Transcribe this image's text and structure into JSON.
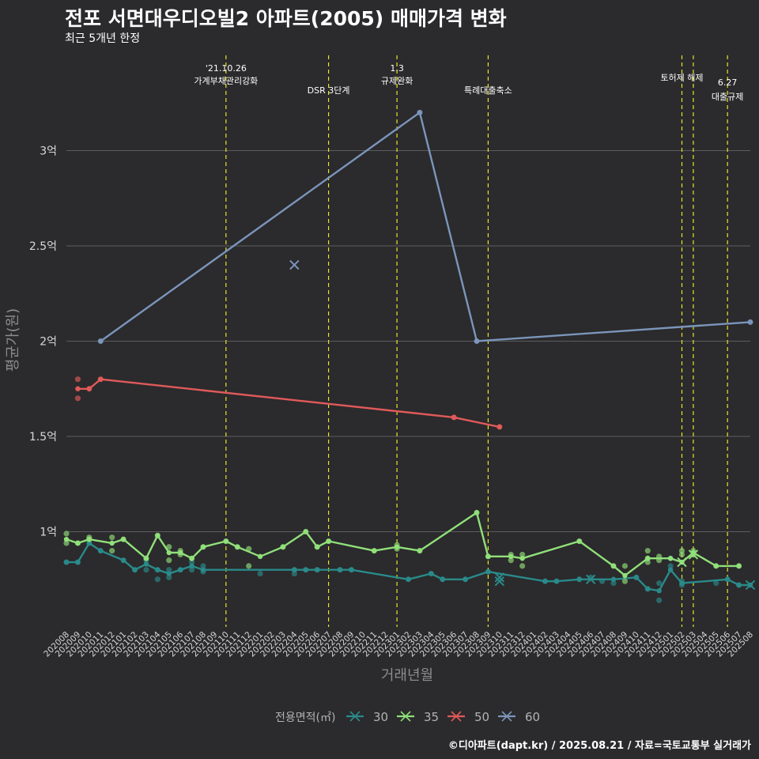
{
  "header": {
    "title": "전포 서면대우디오빌2 아파트(2005) 매매가격 변화",
    "subtitle": "최근 5개년 한정"
  },
  "footer": {
    "credit": "©디아파트(dapt.kr) / 2025.08.21 / 자료=국토교통부 실거래가"
  },
  "colors": {
    "background": "#2b2a2c",
    "grid": "#5d5d5f",
    "event_line": "#e6e62a",
    "axis_text": "#d9d9d9",
    "axis_title": "#8c8c8c"
  },
  "chart_data": {
    "type": "line",
    "xlabel": "거래년월",
    "ylabel": "평균가(원)",
    "ylim": [
      0.5,
      3.5
    ],
    "grid": true,
    "legend_position": "bottom",
    "legend_title": "전용면적(㎡)",
    "x_categories": [
      "202008",
      "202009",
      "202010",
      "202011",
      "202012",
      "202101",
      "202102",
      "202103",
      "202104",
      "202105",
      "202106",
      "202107",
      "202108",
      "202109",
      "202110",
      "202111",
      "202112",
      "202201",
      "202202",
      "202203",
      "202204",
      "202205",
      "202206",
      "202207",
      "202208",
      "202209",
      "202210",
      "202211",
      "202212",
      "202301",
      "202302",
      "202303",
      "202304",
      "202305",
      "202306",
      "202307",
      "202308",
      "202309",
      "202310",
      "202311",
      "202312",
      "202401",
      "202402",
      "202403",
      "202404",
      "202405",
      "202406",
      "202407",
      "202408",
      "202409",
      "202410",
      "202411",
      "202412",
      "202501",
      "202502",
      "202503",
      "202504",
      "202505",
      "202506",
      "202507",
      "202508"
    ],
    "y_ticks": [
      {
        "value": 1.0,
        "label": "1억"
      },
      {
        "value": 1.5,
        "label": "1.5억"
      },
      {
        "value": 2.0,
        "label": "2억"
      },
      {
        "value": 2.5,
        "label": "2.5억"
      },
      {
        "value": 3.0,
        "label": "3억"
      }
    ],
    "events": [
      {
        "x": "202110",
        "lines": [
          "'21.10.26",
          "가계부채관리강화"
        ]
      },
      {
        "x": "202207",
        "lines": [
          "DSR 3단계"
        ]
      },
      {
        "x": "202301",
        "lines": [
          "1.3",
          "규제완화"
        ]
      },
      {
        "x": "202309",
        "lines": [
          "특례대출축소"
        ]
      },
      {
        "x": "202502",
        "lines": [
          "토허제 해제"
        ]
      },
      {
        "x": "202503",
        "lines": []
      },
      {
        "x": "202506",
        "lines": [
          "6.27",
          "대출규제"
        ]
      }
    ],
    "series": [
      {
        "name": "30",
        "color": "#2a8a8a",
        "line": [
          [
            "202008",
            0.84
          ],
          [
            "202009",
            0.84
          ],
          [
            "202010",
            0.94
          ],
          [
            "202011",
            0.9
          ],
          [
            "202101",
            0.85
          ],
          [
            "202102",
            0.8
          ],
          [
            "202103",
            0.83
          ],
          [
            "202104",
            0.8
          ],
          [
            "202105",
            0.78
          ],
          [
            "202106",
            0.8
          ],
          [
            "202107",
            0.82
          ],
          [
            "202108",
            0.8
          ],
          [
            "202204",
            0.8
          ],
          [
            "202205",
            0.8
          ],
          [
            "202206",
            0.8
          ],
          [
            "202208",
            0.8
          ],
          [
            "202209",
            0.8
          ],
          [
            "202302",
            0.75
          ],
          [
            "202304",
            0.78
          ],
          [
            "202305",
            0.75
          ],
          [
            "202307",
            0.75
          ],
          [
            "202309",
            0.79
          ],
          [
            "202402",
            0.74
          ],
          [
            "202403",
            0.74
          ],
          [
            "202405",
            0.75
          ],
          [
            "202408",
            0.75
          ],
          [
            "202410",
            0.76
          ],
          [
            "202411",
            0.7
          ],
          [
            "202412",
            0.69
          ],
          [
            "202501",
            0.8
          ],
          [
            "202502",
            0.73
          ],
          [
            "202506",
            0.75
          ],
          [
            "202507",
            0.72
          ],
          [
            "202508",
            0.72
          ]
        ],
        "points": [
          [
            "202008",
            0.84
          ],
          [
            "202009",
            0.84
          ],
          [
            "202010",
            0.94
          ],
          [
            "202011",
            0.9
          ],
          [
            "202101",
            0.85
          ],
          [
            "202102",
            0.8
          ],
          [
            "202103",
            0.8
          ],
          [
            "202103",
            0.85
          ],
          [
            "202104",
            0.75
          ],
          [
            "202104",
            0.8
          ],
          [
            "202105",
            0.76
          ],
          [
            "202105",
            0.8
          ],
          [
            "202106",
            0.8
          ],
          [
            "202107",
            0.8
          ],
          [
            "202107",
            0.84
          ],
          [
            "202108",
            0.79
          ],
          [
            "202108",
            0.82
          ],
          [
            "202201",
            0.78
          ],
          [
            "202204",
            0.78
          ],
          [
            "202204",
            0.8
          ],
          [
            "202205",
            0.8
          ],
          [
            "202206",
            0.8
          ],
          [
            "202208",
            0.8
          ],
          [
            "202209",
            0.8
          ],
          [
            "202302",
            0.75
          ],
          [
            "202304",
            0.78
          ],
          [
            "202305",
            0.75
          ],
          [
            "202307",
            0.75
          ],
          [
            "202309",
            0.79
          ],
          [
            "202402",
            0.74
          ],
          [
            "202403",
            0.74
          ],
          [
            "202405",
            0.75
          ],
          [
            "202406",
            0.76
          ],
          [
            "202407",
            0.74
          ],
          [
            "202408",
            0.73
          ],
          [
            "202410",
            0.76
          ],
          [
            "202411",
            0.7
          ],
          [
            "202412",
            0.64
          ],
          [
            "202412",
            0.73
          ],
          [
            "202501",
            0.82
          ],
          [
            "202501",
            0.86
          ],
          [
            "202502",
            0.72
          ],
          [
            "202502",
            0.74
          ],
          [
            "202505",
            0.73
          ],
          [
            "202506",
            0.75
          ],
          [
            "202507",
            0.72
          ]
        ],
        "x_marks": [
          [
            "202310",
            0.74
          ],
          [
            "202310",
            0.76
          ],
          [
            "202406",
            0.75
          ],
          [
            "202508",
            0.72
          ]
        ]
      },
      {
        "name": "35",
        "color": "#90e07a",
        "line": [
          [
            "202008",
            0.96
          ],
          [
            "202009",
            0.94
          ],
          [
            "202010",
            0.96
          ],
          [
            "202012",
            0.94
          ],
          [
            "202101",
            0.96
          ],
          [
            "202103",
            0.86
          ],
          [
            "202104",
            0.98
          ],
          [
            "202105",
            0.89
          ],
          [
            "202106",
            0.89
          ],
          [
            "202107",
            0.86
          ],
          [
            "202108",
            0.92
          ],
          [
            "202110",
            0.95
          ],
          [
            "202111",
            0.92
          ],
          [
            "202201",
            0.87
          ],
          [
            "202203",
            0.92
          ],
          [
            "202205",
            1.0
          ],
          [
            "202206",
            0.92
          ],
          [
            "202207",
            0.95
          ],
          [
            "202211",
            0.9
          ],
          [
            "202301",
            0.92
          ],
          [
            "202303",
            0.9
          ],
          [
            "202308",
            1.1
          ],
          [
            "202309",
            0.87
          ],
          [
            "202311",
            0.87
          ],
          [
            "202312",
            0.86
          ],
          [
            "202405",
            0.95
          ],
          [
            "202408",
            0.82
          ],
          [
            "202409",
            0.77
          ],
          [
            "202411",
            0.86
          ],
          [
            "202501",
            0.86
          ],
          [
            "202502",
            0.84
          ],
          [
            "202503",
            0.89
          ],
          [
            "202505",
            0.82
          ],
          [
            "202507",
            0.82
          ]
        ],
        "points": [
          [
            "202008",
            0.99
          ],
          [
            "202008",
            0.94
          ],
          [
            "202009",
            0.94
          ],
          [
            "202010",
            0.96
          ],
          [
            "202010",
            0.97
          ],
          [
            "202012",
            0.9
          ],
          [
            "202012",
            0.97
          ],
          [
            "202101",
            0.96
          ],
          [
            "202103",
            0.86
          ],
          [
            "202104",
            0.98
          ],
          [
            "202105",
            0.85
          ],
          [
            "202105",
            0.92
          ],
          [
            "202106",
            0.88
          ],
          [
            "202106",
            0.9
          ],
          [
            "202107",
            0.86
          ],
          [
            "202108",
            0.92
          ],
          [
            "202110",
            0.95
          ],
          [
            "202111",
            0.92
          ],
          [
            "202112",
            0.82
          ],
          [
            "202112",
            0.91
          ],
          [
            "202203",
            0.92
          ],
          [
            "202205",
            1.0
          ],
          [
            "202206",
            0.92
          ],
          [
            "202207",
            0.95
          ],
          [
            "202211",
            0.9
          ],
          [
            "202301",
            0.91
          ],
          [
            "202301",
            0.93
          ],
          [
            "202303",
            0.9
          ],
          [
            "202308",
            1.1
          ],
          [
            "202309",
            0.87
          ],
          [
            "202311",
            0.85
          ],
          [
            "202311",
            0.88
          ],
          [
            "202312",
            0.82
          ],
          [
            "202312",
            0.88
          ],
          [
            "202405",
            0.95
          ],
          [
            "202408",
            0.82
          ],
          [
            "202409",
            0.74
          ],
          [
            "202409",
            0.82
          ],
          [
            "202411",
            0.84
          ],
          [
            "202411",
            0.86
          ],
          [
            "202411",
            0.9
          ],
          [
            "202412",
            0.85
          ],
          [
            "202412",
            0.87
          ],
          [
            "202502",
            0.88
          ],
          [
            "202502",
            0.9
          ],
          [
            "202503",
            0.88
          ],
          [
            "202503",
            0.9
          ],
          [
            "202505",
            0.82
          ],
          [
            "202507",
            0.82
          ]
        ],
        "x_marks": [
          [
            "202502",
            0.84
          ],
          [
            "202503",
            0.88
          ]
        ]
      },
      {
        "name": "50",
        "color": "#e05a5a",
        "line": [
          [
            "202009",
            1.75
          ],
          [
            "202010",
            1.75
          ],
          [
            "202011",
            1.8
          ],
          [
            "202306",
            1.6
          ],
          [
            "202310",
            1.55
          ]
        ],
        "points": [
          [
            "202009",
            1.8
          ],
          [
            "202009",
            1.7
          ],
          [
            "202010",
            1.75
          ],
          [
            "202011",
            1.8
          ],
          [
            "202306",
            1.6
          ],
          [
            "202310",
            1.55
          ]
        ],
        "x_marks": []
      },
      {
        "name": "60",
        "color": "#7b95bb",
        "line": [
          [
            "202011",
            2.0
          ],
          [
            "202303",
            3.2
          ],
          [
            "202308",
            2.0
          ],
          [
            "202508",
            2.1
          ]
        ],
        "points": [
          [
            "202011",
            2.0
          ],
          [
            "202303",
            3.2
          ],
          [
            "202308",
            2.0
          ],
          [
            "202508",
            2.1
          ]
        ],
        "x_marks": [
          [
            "202204",
            2.4
          ]
        ]
      }
    ]
  }
}
